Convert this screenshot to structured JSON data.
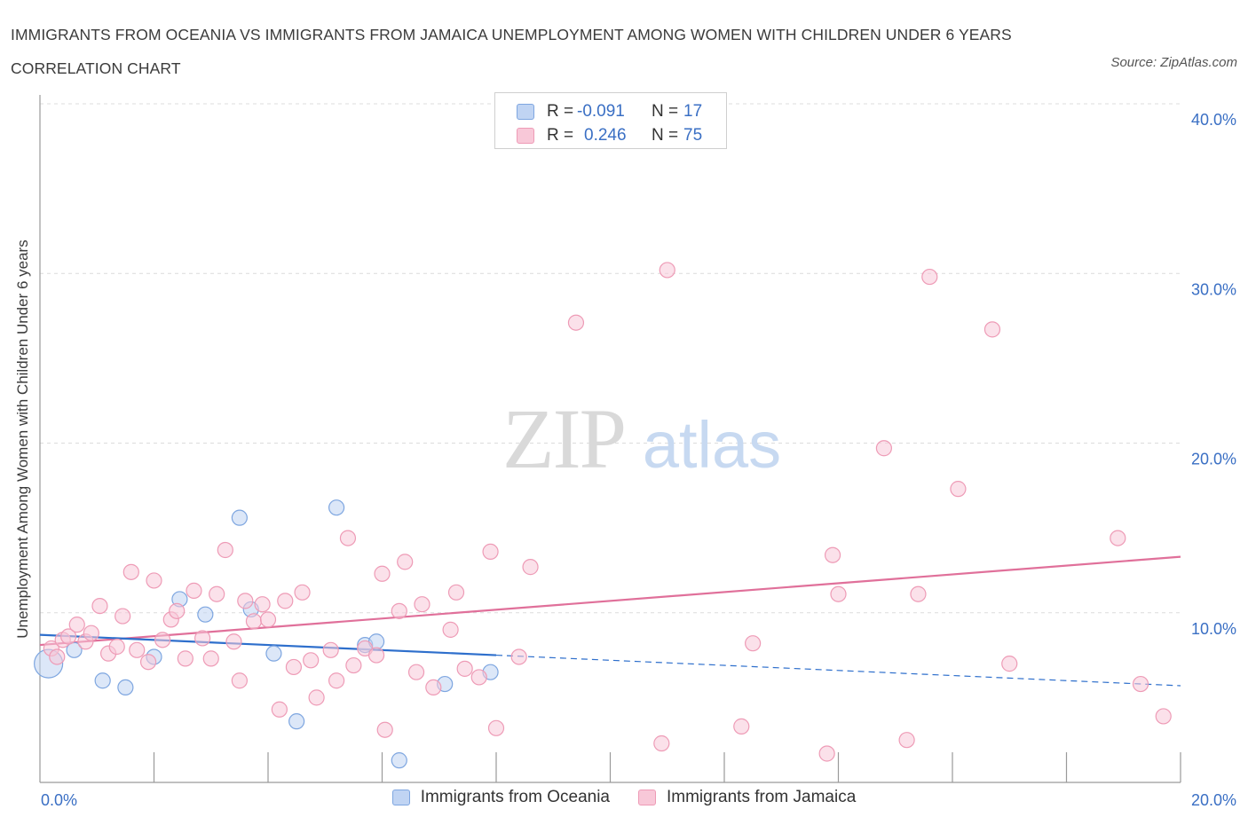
{
  "title": "IMMIGRANTS FROM OCEANIA VS IMMIGRANTS FROM JAMAICA UNEMPLOYMENT AMONG WOMEN WITH CHILDREN UNDER 6 YEARS CORRELATION CHART",
  "source": "Source: ZipAtlas.com",
  "watermark": {
    "zip": "ZIP",
    "atlas": "atlas"
  },
  "legend_top": [
    {
      "r_label": "R =",
      "r_value": "-0.091",
      "n_label": "N =",
      "n_value": "17"
    },
    {
      "r_label": "R =",
      "r_value": "0.246",
      "n_label": "N =",
      "n_value": "75"
    }
  ],
  "chart_data": {
    "type": "scatter",
    "title": "IMMIGRANTS FROM OCEANIA VS IMMIGRANTS FROM JAMAICA UNEMPLOYMENT AMONG WOMEN WITH CHILDREN UNDER 6 YEARS CORRELATION CHART",
    "xlabel": "",
    "ylabel": "Unemployment Among Women with Children Under 6 years",
    "xlim": [
      0,
      20
    ],
    "ylim": [
      0,
      40
    ],
    "x_tick_labels": [
      "0.0%",
      "20.0%"
    ],
    "y_ticks": [
      {
        "value": 10,
        "label": "10.0%"
      },
      {
        "value": 20,
        "label": "20.0%"
      },
      {
        "value": 30,
        "label": "30.0%"
      },
      {
        "value": 40,
        "label": "40.0%"
      }
    ],
    "grid": true,
    "legend_position": "bottom",
    "series": [
      {
        "name": "Immigrants from Oceania",
        "color": "#7ea6e0",
        "fill": "#c0d4f3",
        "line_color": "#2e6fcc",
        "r": -0.091,
        "n": 17,
        "trend": {
          "x0": 0,
          "y0": 8.7,
          "x1": 8.0,
          "y1": 7.5,
          "x_dash_end": 20,
          "y_dash_end": 5.7
        },
        "points": [
          {
            "x": 0.15,
            "y": 7.0,
            "big": true
          },
          {
            "x": 0.6,
            "y": 7.8
          },
          {
            "x": 1.1,
            "y": 6.0
          },
          {
            "x": 1.5,
            "y": 5.6
          },
          {
            "x": 2.0,
            "y": 7.4
          },
          {
            "x": 2.45,
            "y": 10.8
          },
          {
            "x": 2.9,
            "y": 9.9
          },
          {
            "x": 3.5,
            "y": 15.6
          },
          {
            "x": 3.7,
            "y": 10.2
          },
          {
            "x": 4.1,
            "y": 7.6
          },
          {
            "x": 4.5,
            "y": 3.6
          },
          {
            "x": 5.2,
            "y": 16.2
          },
          {
            "x": 5.7,
            "y": 8.1
          },
          {
            "x": 5.9,
            "y": 8.3
          },
          {
            "x": 6.3,
            "y": 1.3
          },
          {
            "x": 7.1,
            "y": 5.8
          },
          {
            "x": 7.9,
            "y": 6.5
          }
        ]
      },
      {
        "name": "Immigrants from Jamaica",
        "color": "#ee9bb6",
        "fill": "#f8c8d8",
        "line_color": "#e0709a",
        "r": 0.246,
        "n": 75,
        "trend": {
          "x0": 0,
          "y0": 8.1,
          "x1": 20,
          "y1": 13.3
        },
        "points": [
          {
            "x": 0.2,
            "y": 7.9
          },
          {
            "x": 0.3,
            "y": 7.4
          },
          {
            "x": 0.4,
            "y": 8.4
          },
          {
            "x": 0.5,
            "y": 8.6
          },
          {
            "x": 0.65,
            "y": 9.3
          },
          {
            "x": 0.8,
            "y": 8.3
          },
          {
            "x": 0.9,
            "y": 8.8
          },
          {
            "x": 1.05,
            "y": 10.4
          },
          {
            "x": 1.2,
            "y": 7.6
          },
          {
            "x": 1.35,
            "y": 8.0
          },
          {
            "x": 1.45,
            "y": 9.8
          },
          {
            "x": 1.6,
            "y": 12.4
          },
          {
            "x": 1.7,
            "y": 7.8
          },
          {
            "x": 1.9,
            "y": 7.1
          },
          {
            "x": 2.0,
            "y": 11.9
          },
          {
            "x": 2.15,
            "y": 8.4
          },
          {
            "x": 2.3,
            "y": 9.6
          },
          {
            "x": 2.4,
            "y": 10.1
          },
          {
            "x": 2.55,
            "y": 7.3
          },
          {
            "x": 2.7,
            "y": 11.3
          },
          {
            "x": 2.85,
            "y": 8.5
          },
          {
            "x": 3.0,
            "y": 7.3
          },
          {
            "x": 3.1,
            "y": 11.1
          },
          {
            "x": 3.25,
            "y": 13.7
          },
          {
            "x": 3.4,
            "y": 8.3
          },
          {
            "x": 3.5,
            "y": 6.0
          },
          {
            "x": 3.6,
            "y": 10.7
          },
          {
            "x": 3.75,
            "y": 9.5
          },
          {
            "x": 3.9,
            "y": 10.5
          },
          {
            "x": 4.0,
            "y": 9.6
          },
          {
            "x": 4.2,
            "y": 4.3
          },
          {
            "x": 4.3,
            "y": 10.7
          },
          {
            "x": 4.45,
            "y": 6.8
          },
          {
            "x": 4.6,
            "y": 11.2
          },
          {
            "x": 4.75,
            "y": 7.2
          },
          {
            "x": 4.85,
            "y": 5.0
          },
          {
            "x": 5.1,
            "y": 7.8
          },
          {
            "x": 5.2,
            "y": 6.0
          },
          {
            "x": 5.4,
            "y": 14.4
          },
          {
            "x": 5.5,
            "y": 6.9
          },
          {
            "x": 5.7,
            "y": 7.9
          },
          {
            "x": 5.9,
            "y": 7.5
          },
          {
            "x": 6.0,
            "y": 12.3
          },
          {
            "x": 6.05,
            "y": 3.1
          },
          {
            "x": 6.3,
            "y": 10.1
          },
          {
            "x": 6.4,
            "y": 13.0
          },
          {
            "x": 6.6,
            "y": 6.5
          },
          {
            "x": 6.7,
            "y": 10.5
          },
          {
            "x": 6.9,
            "y": 5.6
          },
          {
            "x": 7.2,
            "y": 9.0
          },
          {
            "x": 7.3,
            "y": 11.2
          },
          {
            "x": 7.45,
            "y": 6.7
          },
          {
            "x": 7.7,
            "y": 6.2
          },
          {
            "x": 7.9,
            "y": 13.6
          },
          {
            "x": 8.0,
            "y": 3.2
          },
          {
            "x": 8.4,
            "y": 7.4
          },
          {
            "x": 8.6,
            "y": 12.7
          },
          {
            "x": 9.4,
            "y": 27.1
          },
          {
            "x": 10.9,
            "y": 2.3
          },
          {
            "x": 11.0,
            "y": 30.2
          },
          {
            "x": 12.3,
            "y": 3.3
          },
          {
            "x": 12.5,
            "y": 8.2
          },
          {
            "x": 13.8,
            "y": 1.7
          },
          {
            "x": 13.9,
            "y": 13.4
          },
          {
            "x": 14.0,
            "y": 11.1
          },
          {
            "x": 14.8,
            "y": 19.7
          },
          {
            "x": 15.2,
            "y": 2.5
          },
          {
            "x": 15.4,
            "y": 11.1
          },
          {
            "x": 15.6,
            "y": 29.8
          },
          {
            "x": 16.1,
            "y": 17.3
          },
          {
            "x": 16.7,
            "y": 26.7
          },
          {
            "x": 17.0,
            "y": 7.0
          },
          {
            "x": 18.9,
            "y": 14.4
          },
          {
            "x": 19.3,
            "y": 5.8
          },
          {
            "x": 19.7,
            "y": 3.9
          }
        ]
      }
    ]
  }
}
